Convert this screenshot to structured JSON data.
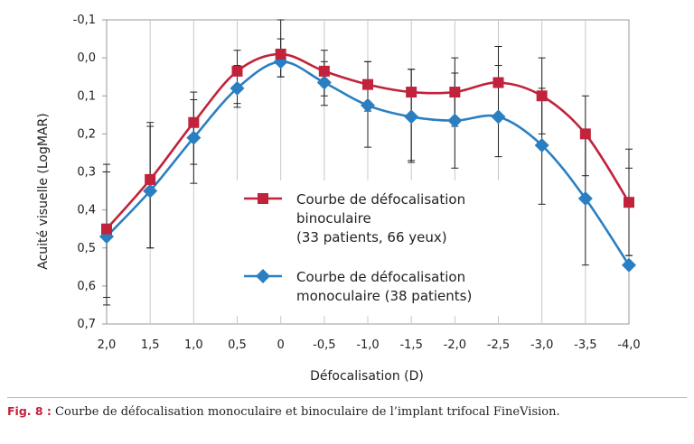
{
  "chart_data": {
    "type": "line",
    "categories": [
      "2,0",
      "1,5",
      "1,0",
      "0,5",
      "0",
      "-0,5",
      "-1,0",
      "-1,5",
      "-2,0",
      "-2,5",
      "-3,0",
      "-3,5",
      "-4,0"
    ],
    "xlabel": "Défocalisation (D)",
    "ylabel": "Acuité visuelle (LogMAR)",
    "ylim": [
      -0.1,
      0.7
    ],
    "y_inverted": true,
    "yticks": [
      -0.1,
      0.0,
      0.1,
      0.2,
      0.3,
      0.4,
      0.5,
      0.6,
      0.7
    ],
    "ytick_labels": [
      "-0,1",
      "0,0",
      "0,1",
      "0,2",
      "0,3",
      "0,4",
      "0,5",
      "0,6",
      "0,7"
    ],
    "grid": "vertical",
    "legend_position": "center-right",
    "series": [
      {
        "name": "Courbe de défocalisation binoculaire (33 patients, 66 yeux)",
        "legend_lines": [
          "Courbe de défocalisation",
          "binoculaire",
          "(33 patients, 66 yeux)"
        ],
        "marker": "square",
        "color": "#c0233b",
        "values": [
          0.45,
          0.32,
          0.17,
          0.035,
          -0.01,
          0.035,
          0.07,
          0.09,
          0.09,
          0.065,
          0.1,
          0.2,
          0.38
        ],
        "err_low": [
          0.28,
          0.17,
          0.09,
          -0.02,
          -0.1,
          -0.02,
          0.01,
          0.03,
          0.0,
          -0.03,
          0.0,
          0.1,
          0.24
        ],
        "err_high": [
          0.65,
          0.5,
          0.28,
          0.12,
          0.05,
          0.1,
          0.14,
          0.27,
          0.18,
          0.16,
          0.2,
          0.31,
          0.52
        ]
      },
      {
        "name": "Courbe de défocalisation monoculaire (38 patients)",
        "legend_lines": [
          "Courbe de défocalisation",
          "monoculaire (38 patients)"
        ],
        "marker": "diamond",
        "color": "#2a7fc2",
        "values": [
          0.47,
          0.35,
          0.21,
          0.08,
          0.01,
          0.065,
          0.125,
          0.155,
          0.165,
          0.155,
          0.23,
          0.37,
          0.545
        ],
        "err_low": [
          0.3,
          0.18,
          0.11,
          0.02,
          -0.05,
          0.01,
          0.01,
          0.03,
          0.04,
          0.02,
          0.08,
          0.19,
          0.29
        ],
        "err_high": [
          0.63,
          0.5,
          0.33,
          0.13,
          0.05,
          0.125,
          0.235,
          0.275,
          0.29,
          0.26,
          0.385,
          0.545,
          0.52
        ]
      }
    ]
  },
  "caption": {
    "label": "Fig. 8 :",
    "text": " Courbe de défocalisation monoculaire et binoculaire de l’implant trifocal FineVision."
  }
}
